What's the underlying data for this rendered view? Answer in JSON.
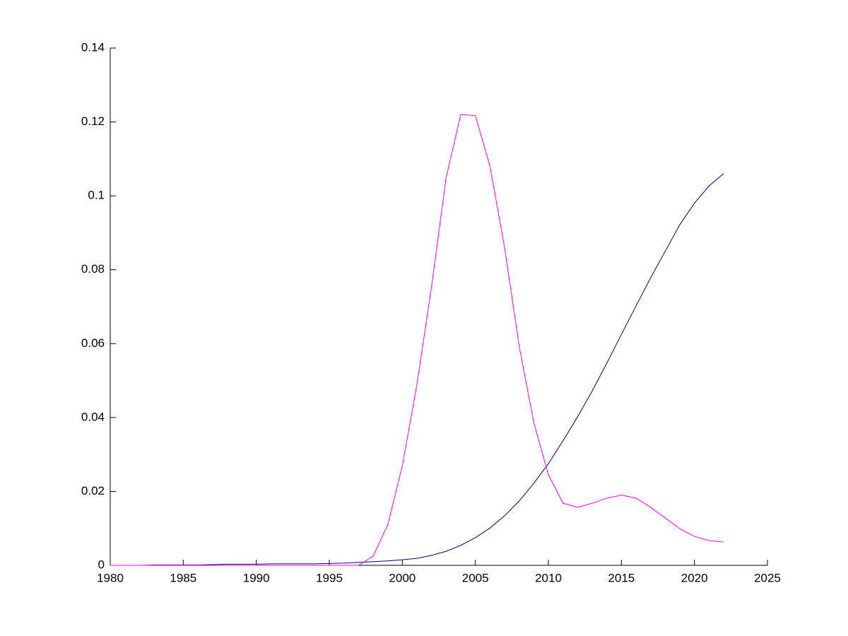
{
  "chart_data": {
    "type": "line",
    "x": [
      1980,
      1981,
      1982,
      1983,
      1984,
      1985,
      1986,
      1987,
      1988,
      1989,
      1990,
      1991,
      1992,
      1993,
      1994,
      1995,
      1996,
      1997,
      1998,
      1999,
      2000,
      2001,
      2002,
      2003,
      2004,
      2005,
      2006,
      2007,
      2008,
      2009,
      2010,
      2011,
      2012,
      2013,
      2014,
      2015,
      2016,
      2017,
      2018,
      2019,
      2020,
      2021,
      2022
    ],
    "series": [
      {
        "color": "#000080",
        "values": [
          0,
          0,
          0,
          0.0001,
          0.0001,
          0.0001,
          0.0001,
          0.0002,
          0.0003,
          0.0003,
          0.0003,
          0.0004,
          0.0004,
          0.0004,
          0.0004,
          0.0005,
          0.0006,
          0.0008,
          0.001,
          0.0012,
          0.0015,
          0.0019,
          0.0027,
          0.0038,
          0.0054,
          0.0075,
          0.0101,
          0.0134,
          0.0174,
          0.0222,
          0.0275,
          0.0337,
          0.0402,
          0.0472,
          0.0547,
          0.0625,
          0.0702,
          0.0778,
          0.085,
          0.0922,
          0.098,
          0.1027,
          0.106
        ]
      },
      {
        "color": "#ff00ff",
        "values": [
          0,
          0,
          0,
          0,
          0,
          0,
          0,
          0,
          0,
          0,
          0,
          0,
          0,
          0,
          0,
          0,
          0,
          0,
          0.0025,
          0.011,
          0.027,
          0.049,
          0.0755,
          0.105,
          0.122,
          0.1217,
          0.108,
          0.086,
          0.0593,
          0.0386,
          0.0245,
          0.0168,
          0.0157,
          0.0168,
          0.0182,
          0.019,
          0.0182,
          0.0157,
          0.0128,
          0.0099,
          0.0078,
          0.0067,
          0.0063
        ]
      }
    ],
    "xlim": [
      1980,
      2025
    ],
    "xticks": [
      1980,
      1985,
      1990,
      1995,
      2000,
      2005,
      2010,
      2015,
      2020,
      2025
    ],
    "ylim": [
      0,
      0.14
    ],
    "yticks": [
      0,
      0.02,
      0.04,
      0.06,
      0.08,
      0.1,
      0.12,
      0.14
    ],
    "grid": false
  }
}
